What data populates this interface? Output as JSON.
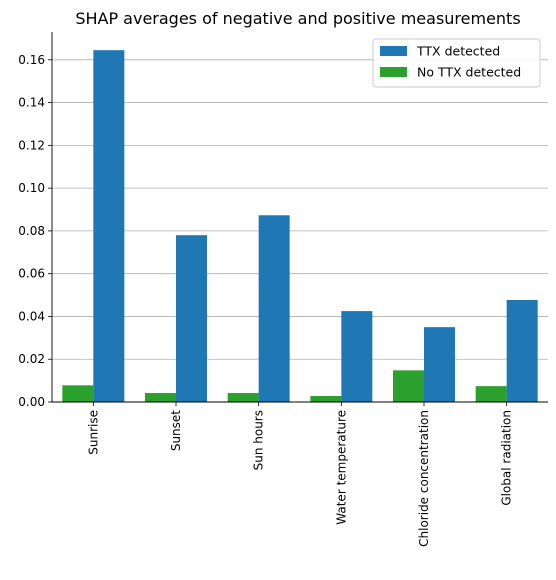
{
  "chart_data": {
    "type": "bar",
    "title": "SHAP averages of negative and positive measurements",
    "xlabel": "",
    "ylabel": "",
    "categories": [
      "Sunrise",
      "Sunset",
      "Sun hours",
      "Water temperature",
      "Chloride concentration",
      "Global radiation"
    ],
    "series": [
      {
        "name": "No TTX detected",
        "color": "#2ca02c",
        "values": [
          0.0078,
          0.0042,
          0.0042,
          0.0028,
          0.0148,
          0.0074
        ]
      },
      {
        "name": "TTX detected",
        "color": "#1f77b4",
        "values": [
          0.1645,
          0.078,
          0.0873,
          0.0425,
          0.035,
          0.0477
        ]
      }
    ],
    "ylim": [
      0,
      0.173
    ],
    "yticks": [
      0.0,
      0.02,
      0.04,
      0.06,
      0.08,
      0.1,
      0.12,
      0.14,
      0.16
    ],
    "ytick_labels": [
      "0.00",
      "0.02",
      "0.04",
      "0.06",
      "0.08",
      "0.10",
      "0.12",
      "0.14",
      "0.16"
    ],
    "grid": "y",
    "legend_position": "top-right",
    "legend_order": [
      "TTX detected",
      "No TTX detected"
    ]
  }
}
